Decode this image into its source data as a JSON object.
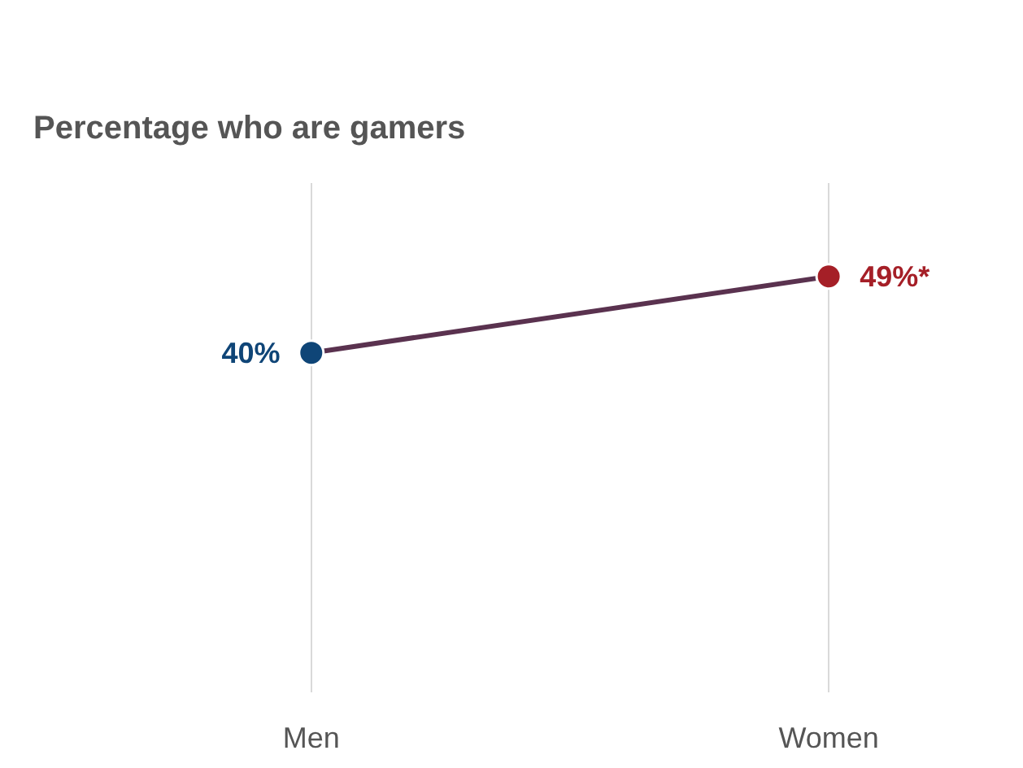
{
  "chart_data": {
    "type": "line",
    "title": "Percentage who are gamers",
    "categories": [
      "Men",
      "Women"
    ],
    "series": [
      {
        "values": [
          40,
          49
        ],
        "colors": [
          "#0f4577",
          "#a51f27"
        ],
        "value_labels": [
          "40%",
          "49%*"
        ]
      }
    ],
    "ylim": [
      0,
      60
    ],
    "grid": "x",
    "marker": "circle",
    "line_style": "solid",
    "tick_labels": "x"
  }
}
